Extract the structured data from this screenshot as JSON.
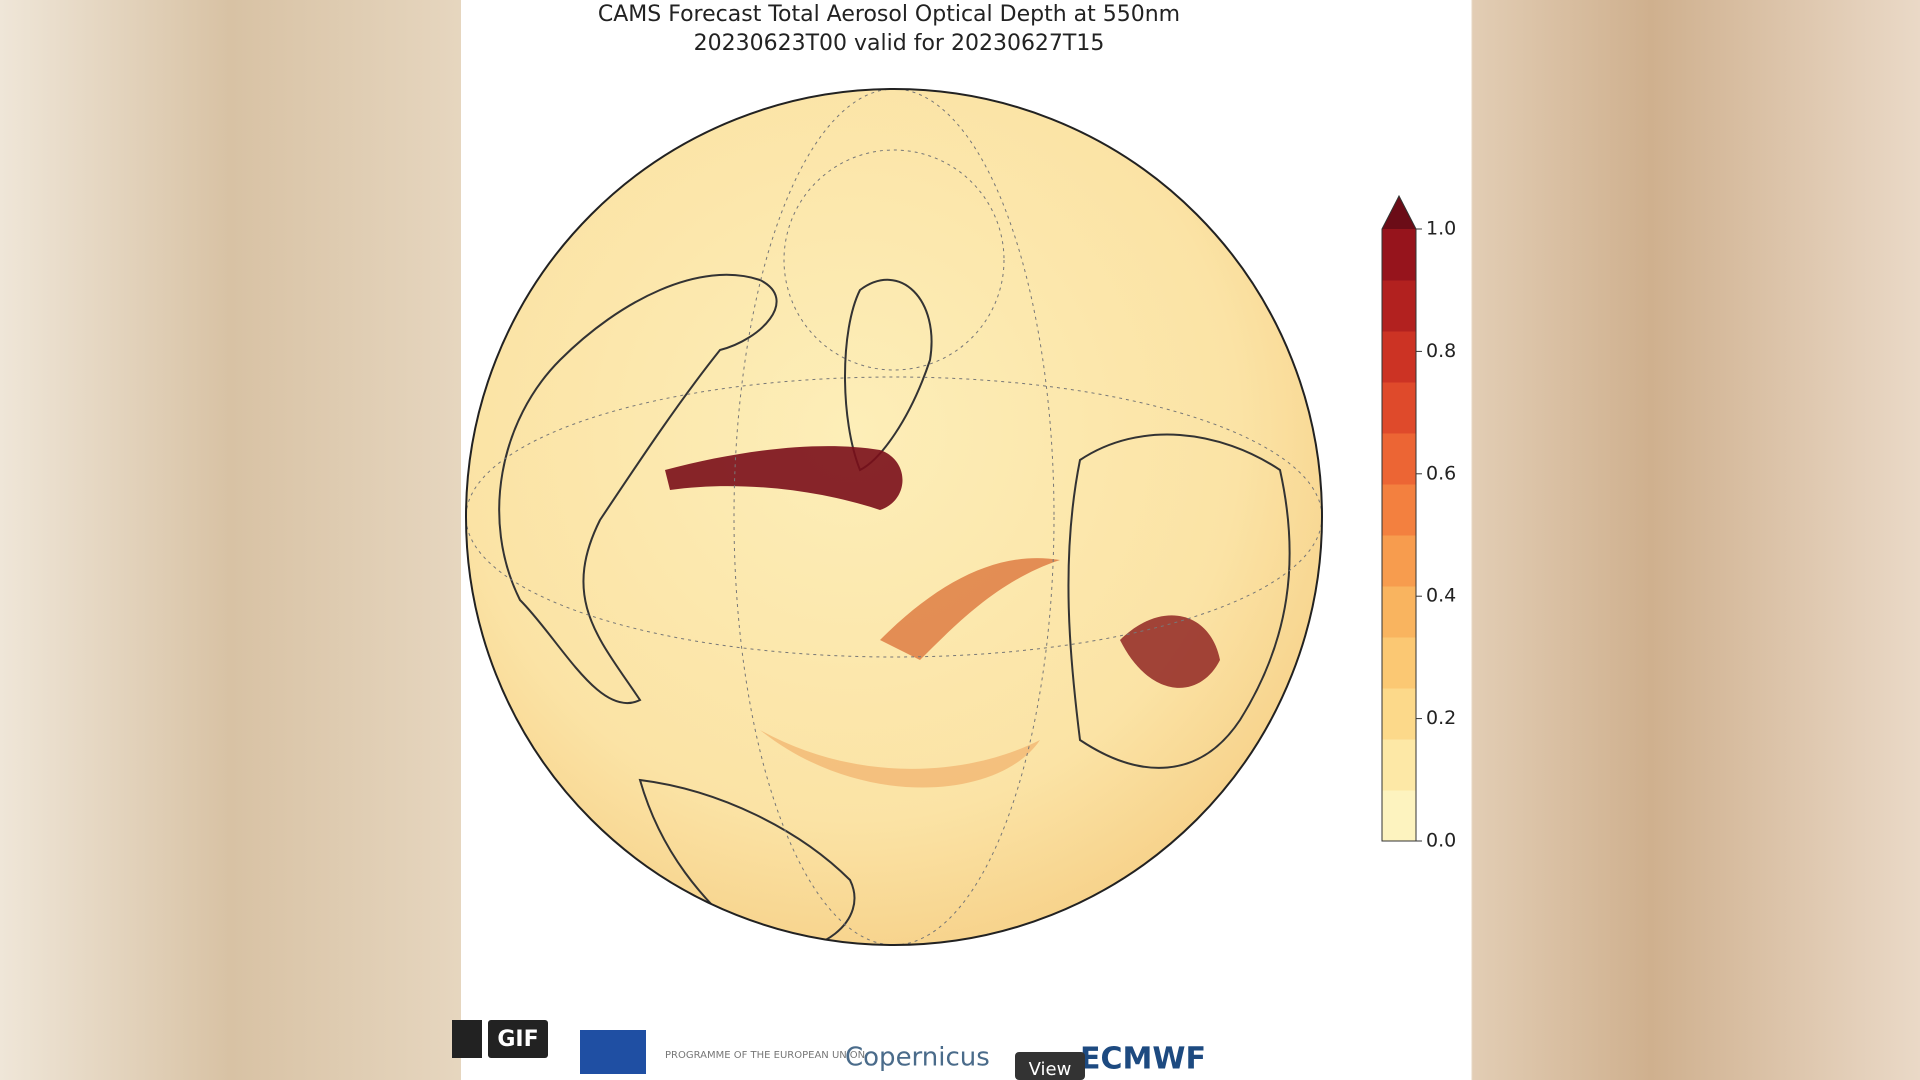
{
  "map": {
    "title": "CAMS Forecast Total Aerosol Optical Depth at 550nm",
    "subtitle": "20230623T00 valid for 20230627T15",
    "colorbar": {
      "range": [
        0,
        1
      ],
      "ticks": [
        {
          "value": 0,
          "label": "0.0"
        },
        {
          "value": 0.2,
          "label": "0.2"
        },
        {
          "value": 0.4,
          "label": "0.4"
        },
        {
          "value": 0.6,
          "label": "0.6"
        },
        {
          "value": 0.8,
          "label": "0.8"
        },
        {
          "value": 1,
          "label": "1.0"
        }
      ],
      "colors": [
        "#fdf3bf",
        "#fde8a6",
        "#fcd98a",
        "#fbc873",
        "#f9b45f",
        "#f79c4e",
        "#f3803f",
        "#ec6534",
        "#df4a2b",
        "#cc3324",
        "#b2211f",
        "#96141c"
      ],
      "extend_color": "#6b0c17"
    }
  },
  "footer": {
    "gif": "GIF",
    "eu": "PROGRAMME OF THE EUROPEAN UNION",
    "copernicus": "Copernicus",
    "ecmwf": "ECMWF",
    "view": "View"
  }
}
